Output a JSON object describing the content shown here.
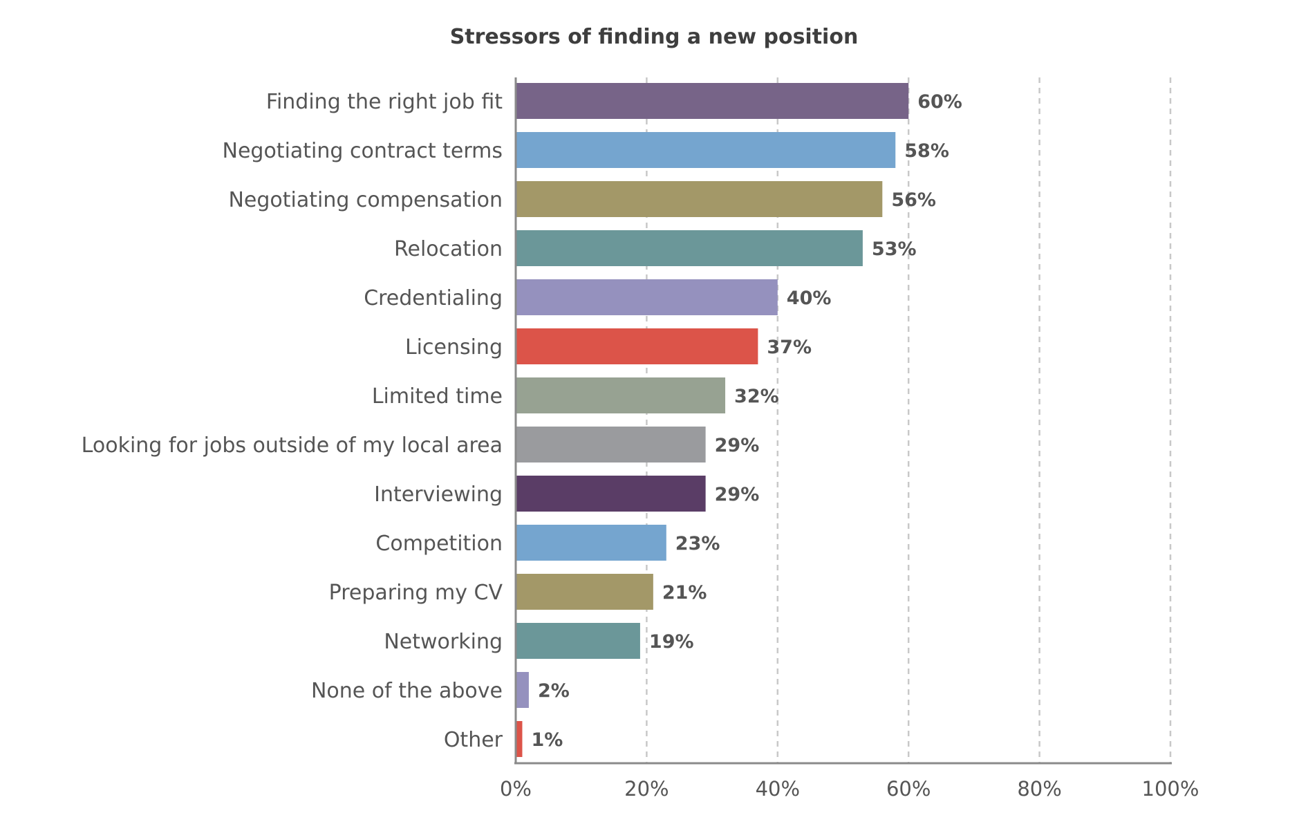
{
  "chart_data": {
    "type": "bar",
    "orientation": "horizontal",
    "title": "Stressors of finding a new position",
    "xlabel": "",
    "ylabel": "",
    "xlim": [
      0,
      100
    ],
    "x_ticks": [
      "0%",
      "20%",
      "40%",
      "60%",
      "80%",
      "100%"
    ],
    "x_tick_values": [
      0,
      20,
      40,
      60,
      80,
      100
    ],
    "grid": true,
    "legend": "none",
    "categories": [
      "Finding the right job fit",
      "Negotiating contract terms",
      "Negotiating compensation",
      "Relocation",
      "Credentialing",
      "Licensing",
      "Limited time",
      "Looking for jobs outside of my local area",
      "Interviewing",
      "Competition",
      "Preparing my CV",
      "Networking",
      "None of the above",
      "Other"
    ],
    "values": [
      60,
      58,
      56,
      53,
      40,
      37,
      32,
      29,
      29,
      23,
      21,
      19,
      2,
      1
    ],
    "value_labels": [
      "60%",
      "58%",
      "56%",
      "53%",
      "40%",
      "37%",
      "32%",
      "29%",
      "29%",
      "23%",
      "21%",
      "19%",
      "2%",
      "1%"
    ],
    "colors": [
      "#776488",
      "#75a5cf",
      "#a39868",
      "#6b9799",
      "#9591be",
      "#dc5449",
      "#97a292",
      "#9a9b9e",
      "#5a3d66",
      "#75a5cf",
      "#a39868",
      "#6b9799",
      "#9591be",
      "#dc5449"
    ]
  }
}
